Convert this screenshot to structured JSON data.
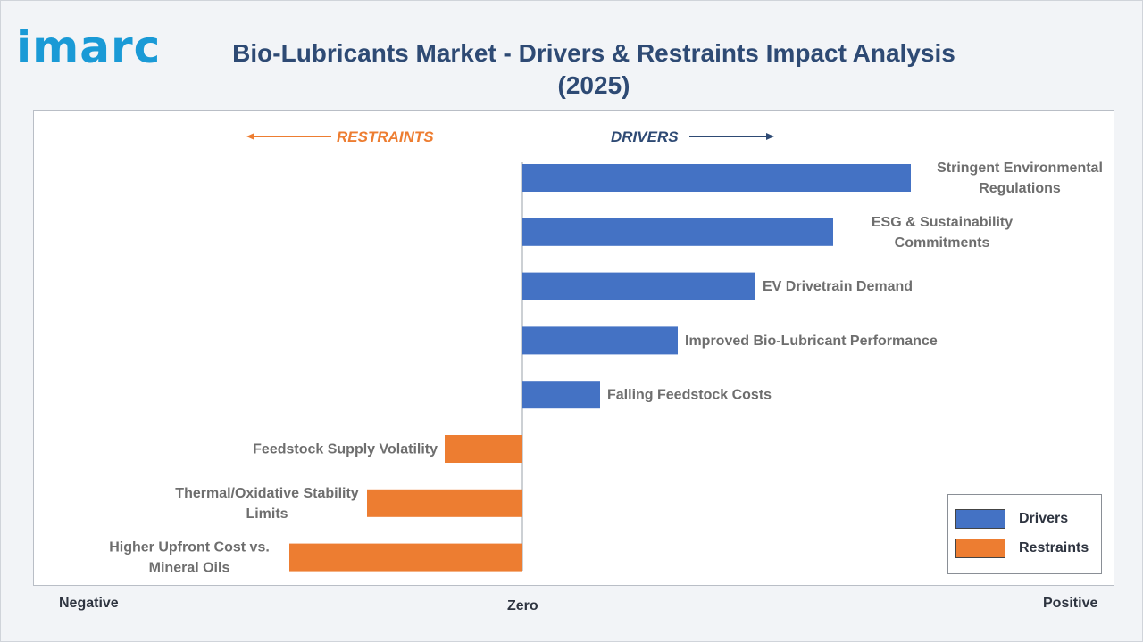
{
  "logo": {
    "text": "imarc"
  },
  "header": {
    "title": "Bio-Lubricants Market - Drivers & Restraints Impact Analysis (2025)"
  },
  "colors": {
    "drivers": "#4472c4",
    "restraints": "#ed7d31",
    "title": "#2e4a74",
    "logo": "#1a9ad6"
  },
  "chart_data": {
    "type": "bar",
    "orientation": "horizontal",
    "title": "Bio-Lubricants Market - Drivers & Restraints Impact Analysis (2025)",
    "direction_labels": {
      "restraints": "RESTRAINTS",
      "drivers": "DRIVERS"
    },
    "axis_labels": {
      "negative": "Negative",
      "zero": "Zero",
      "positive": "Positive"
    },
    "xlim": [
      -3,
      5
    ],
    "categories": [
      "Stringent Environmental Regulations",
      "ESG & Sustainability Commitments",
      "EV Drivetrain Demand",
      "Improved Bio-Lubricant Performance",
      "Falling Feedstock Costs",
      "Feedstock Supply Volatility",
      "Thermal/Oxidative Stability Limits",
      "Higher Upfront Cost vs. Mineral Oils"
    ],
    "label_lines": [
      [
        "Stringent Environmental",
        "Regulations"
      ],
      [
        "ESG & Sustainability",
        "Commitments"
      ],
      [
        "EV Drivetrain Demand"
      ],
      [
        "Improved Bio-Lubricant Performance"
      ],
      [
        "Falling Feedstock Costs"
      ],
      [
        "Feedstock Supply Volatility"
      ],
      [
        "Thermal/Oxidative Stability",
        "Limits"
      ],
      [
        "Higher Upfront Cost vs.",
        "Mineral Oils"
      ]
    ],
    "values": [
      5,
      4,
      3,
      2,
      1,
      -1,
      -2,
      -3
    ],
    "series": [
      {
        "name": "Drivers",
        "values": [
          5,
          4,
          3,
          2,
          1,
          null,
          null,
          null
        ]
      },
      {
        "name": "Restraints",
        "values": [
          null,
          null,
          null,
          null,
          null,
          -1,
          -2,
          -3
        ]
      }
    ],
    "legend": {
      "position": "bottom-right",
      "items": [
        "Drivers",
        "Restraints"
      ]
    },
    "grid": false
  }
}
